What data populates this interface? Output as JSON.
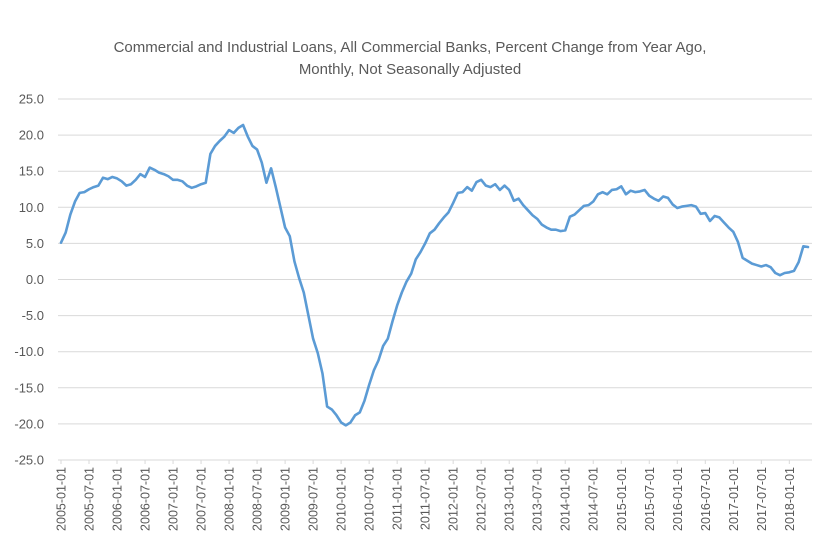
{
  "colors": {
    "line": "#5B9BD5",
    "grid": "#D9D9D9",
    "text": "#595959"
  },
  "chart_data": {
    "type": "line",
    "title": "Commercial and Industrial Loans, All Commercial Banks, Percent Change from Year Ago, Monthly, Not Seasonally Adjusted",
    "title_lines": [
      "Commercial and Industrial Loans, All Commercial Banks, Percent Change from Year Ago,",
      "Monthly, Not Seasonally Adjusted"
    ],
    "xlabel": "",
    "ylabel": "",
    "ylim": [
      -25,
      25
    ],
    "yticks": [
      "25.0",
      "20.0",
      "15.0",
      "10.0",
      "5.0",
      "0.0",
      "-5.0",
      "-10.0",
      "-15.0",
      "-20.0",
      "-25.0"
    ],
    "xticks": [
      "2005-01-01",
      "2005-07-01",
      "2006-01-01",
      "2006-07-01",
      "2007-01-01",
      "2007-07-01",
      "2008-01-01",
      "2008-07-01",
      "2009-01-01",
      "2009-07-01",
      "2010-01-01",
      "2010-07-01",
      "2011-01-01",
      "2011-07-01",
      "2012-01-01",
      "2012-07-01",
      "2013-01-01",
      "2013-07-01",
      "2014-01-01",
      "2014-07-01",
      "2015-01-01",
      "2015-07-01",
      "2016-01-01",
      "2016-07-01",
      "2017-01-01",
      "2017-07-01",
      "2018-01-01"
    ],
    "grid": "horizontal",
    "legend": "none",
    "series": [
      {
        "x_start": "2005-01-01",
        "frequency": "monthly",
        "values": [
          5.1,
          6.5,
          9.0,
          10.8,
          12.0,
          12.1,
          12.5,
          12.8,
          13.0,
          14.1,
          13.9,
          14.2,
          14.0,
          13.6,
          13.0,
          13.2,
          13.8,
          14.6,
          14.2,
          15.5,
          15.2,
          14.8,
          14.6,
          14.3,
          13.8,
          13.8,
          13.6,
          13.0,
          12.7,
          12.9,
          13.2,
          13.4,
          17.4,
          18.5,
          19.2,
          19.8,
          20.7,
          20.3,
          21.0,
          21.4,
          19.8,
          18.5,
          18.0,
          16.2,
          13.4,
          15.4,
          12.8,
          10.0,
          7.2,
          6.0,
          2.5,
          0.2,
          -1.8,
          -5.0,
          -8.2,
          -10.2,
          -13.0,
          -17.6,
          -18.0,
          -18.8,
          -19.8,
          -20.2,
          -19.8,
          -18.8,
          -18.4,
          -16.8,
          -14.6,
          -12.6,
          -11.2,
          -9.2,
          -8.2,
          -5.8,
          -3.6,
          -1.8,
          -0.3,
          0.8,
          2.8,
          3.8,
          5.0,
          6.4,
          6.9,
          7.8,
          8.6,
          9.3,
          10.6,
          12.0,
          12.1,
          12.8,
          12.3,
          13.5,
          13.8,
          13.0,
          12.8,
          13.2,
          12.4,
          13.0,
          12.4,
          10.9,
          11.2,
          10.3,
          9.6,
          8.9,
          8.4,
          7.6,
          7.2,
          6.9,
          6.9,
          6.7,
          6.8,
          8.7,
          9.0,
          9.6,
          10.2,
          10.3,
          10.8,
          11.8,
          12.1,
          11.8,
          12.4,
          12.5,
          12.9,
          11.8,
          12.3,
          12.1,
          12.2,
          12.4,
          11.6,
          11.2,
          10.9,
          11.5,
          11.3,
          10.4,
          9.9,
          10.1,
          10.2,
          10.3,
          10.1,
          9.1,
          9.2,
          8.1,
          8.8,
          8.6,
          7.9,
          7.2,
          6.6,
          5.2,
          3.0,
          2.6,
          2.2,
          2.0,
          1.8,
          2.0,
          1.7,
          0.9,
          0.6,
          0.9,
          1.0,
          1.2,
          2.4,
          4.6,
          4.5
        ]
      }
    ]
  }
}
